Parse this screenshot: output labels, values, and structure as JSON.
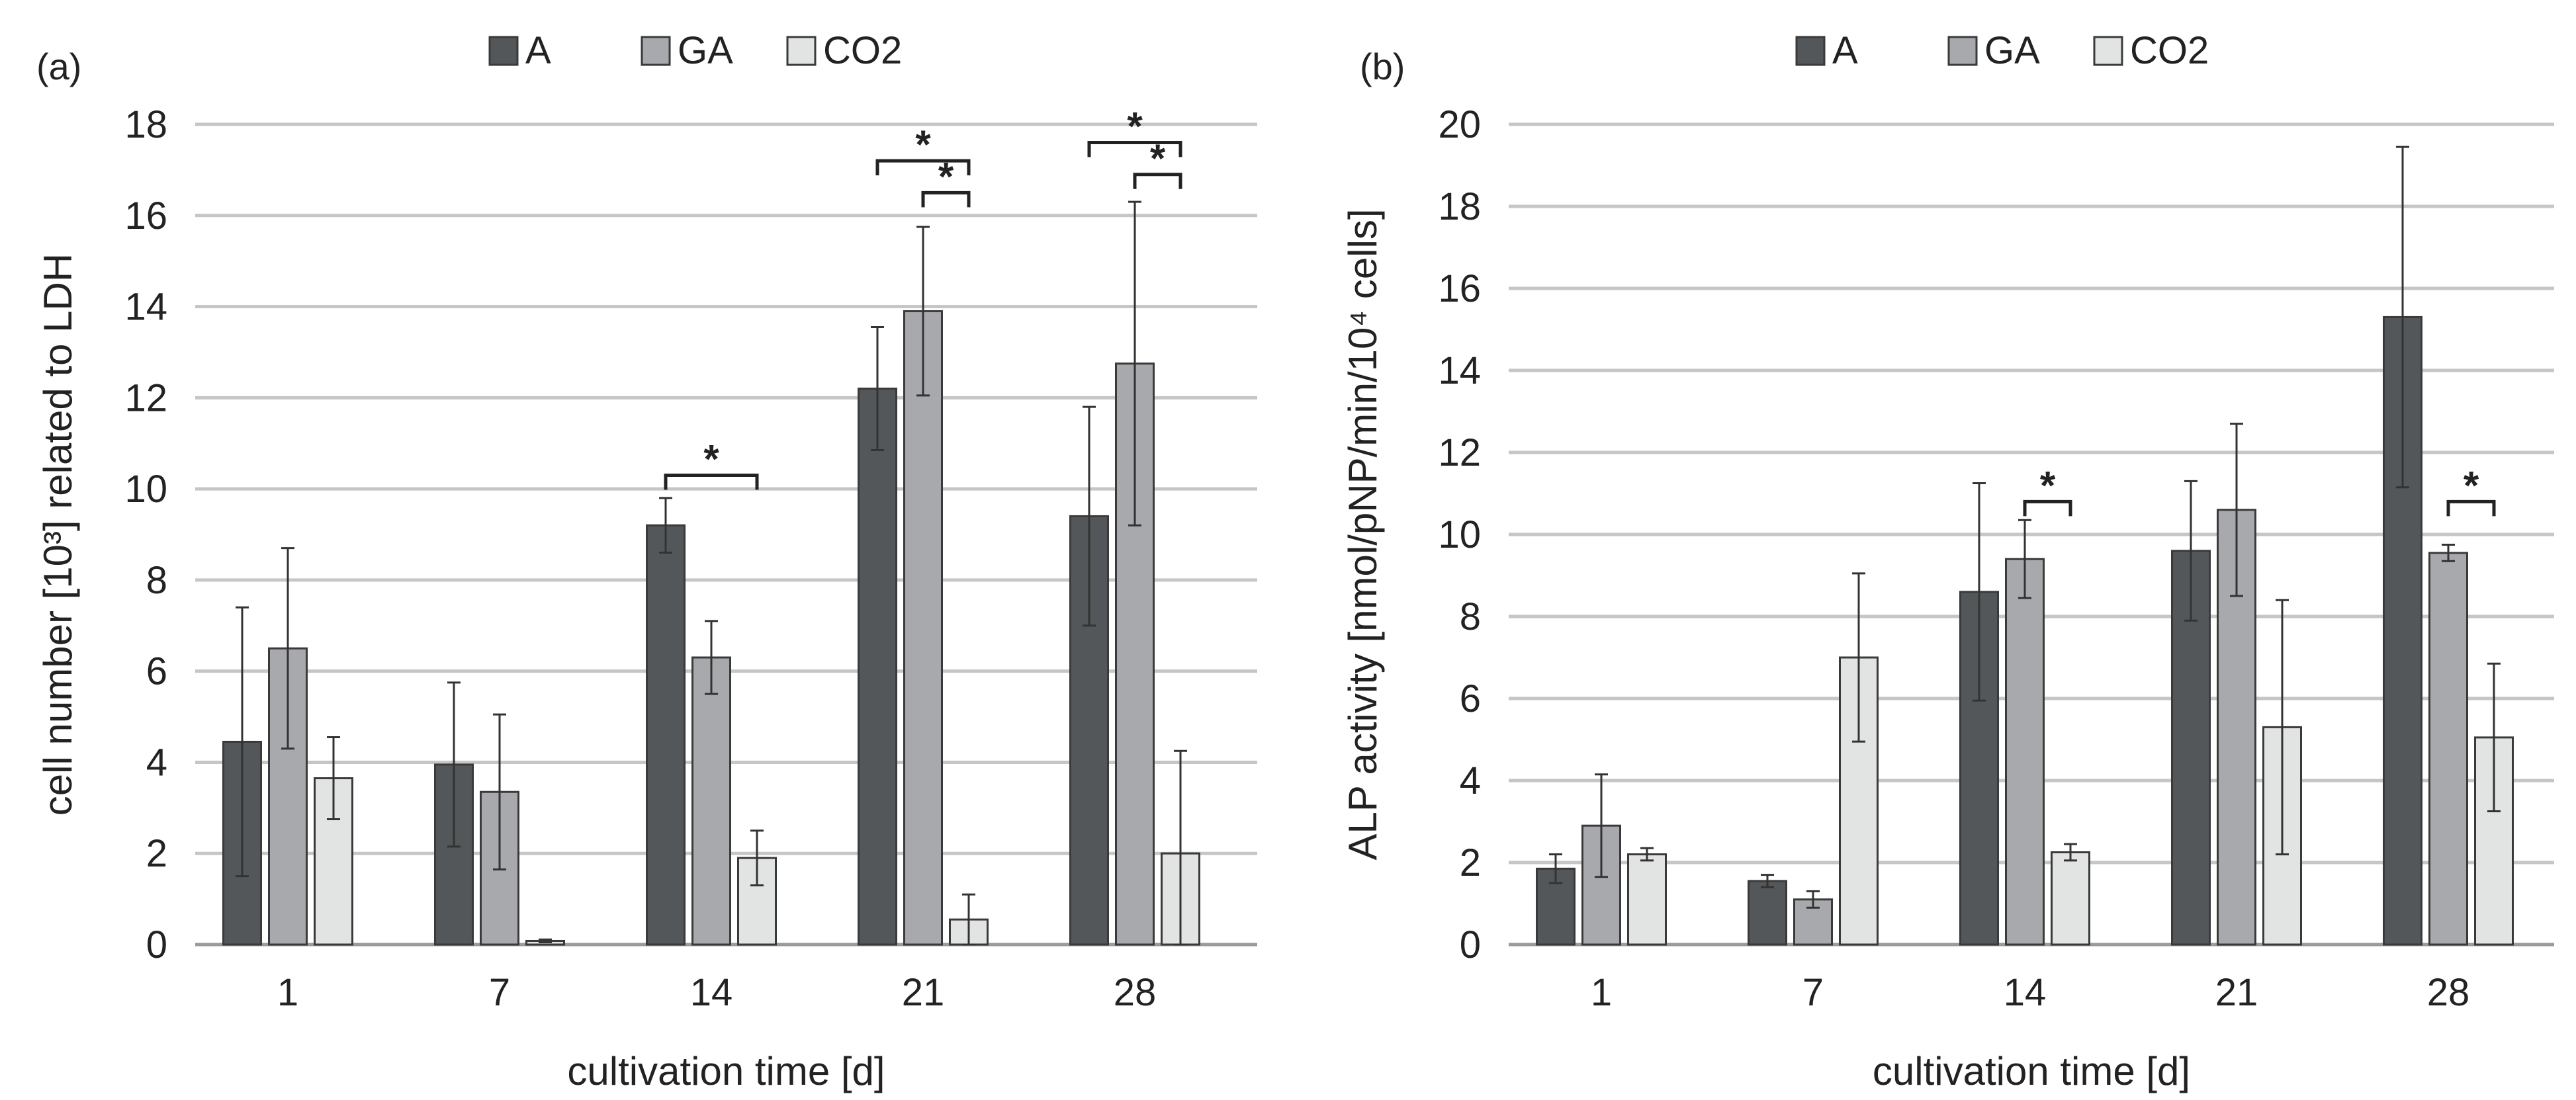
{
  "chart_data": [
    {
      "type": "bar",
      "panel_label": "(a)",
      "title": "",
      "xlabel": "cultivation time [d]",
      "ylabel": "cell number [10³] related to LDH",
      "ylim": [
        0,
        18
      ],
      "yticks": [
        0,
        2,
        4,
        6,
        8,
        10,
        12,
        14,
        16,
        18
      ],
      "grid": true,
      "legend_position": "top-center",
      "categories": [
        "1",
        "7",
        "14",
        "21",
        "28"
      ],
      "series": [
        {
          "name": "A",
          "color": "#545759",
          "values": [
            4.45,
            3.95,
            9.2,
            12.2,
            9.4
          ],
          "errors": [
            2.95,
            1.8,
            0.6,
            1.35,
            2.4
          ]
        },
        {
          "name": "GA",
          "color": "#a7a9ac",
          "values": [
            6.5,
            3.35,
            6.3,
            13.9,
            12.75
          ],
          "errors": [
            2.2,
            1.7,
            0.8,
            1.85,
            3.55
          ]
        },
        {
          "name": "CO2",
          "color": "#e2e3e3",
          "values": [
            3.65,
            0.08,
            1.9,
            0.55,
            2.0
          ],
          "errors": [
            0.9,
            0.03,
            0.6,
            0.55,
            2.25
          ]
        }
      ],
      "significance": [
        {
          "category": "14",
          "from": "A",
          "to": "CO2",
          "label": "*",
          "y": 10.3
        },
        {
          "category": "21",
          "from": "A",
          "to": "CO2",
          "label": "*",
          "y": 17.2
        },
        {
          "category": "21",
          "from": "GA",
          "to": "CO2",
          "label": "*",
          "y": 16.5
        },
        {
          "category": "28",
          "from": "A",
          "to": "CO2",
          "label": "*",
          "y": 17.6
        },
        {
          "category": "28",
          "from": "GA",
          "to": "CO2",
          "label": "*",
          "y": 16.9
        }
      ]
    },
    {
      "type": "bar",
      "panel_label": "(b)",
      "title": "",
      "xlabel": "cultivation time [d]",
      "ylabel": "ALP activity [nmol/pNP/min/10⁴ cells]",
      "ylim": [
        0,
        20
      ],
      "yticks": [
        0,
        2,
        4,
        6,
        8,
        10,
        12,
        14,
        16,
        18,
        20
      ],
      "grid": true,
      "legend_position": "top-center",
      "categories": [
        "1",
        "7",
        "14",
        "21",
        "28"
      ],
      "series": [
        {
          "name": "A",
          "color": "#545759",
          "values": [
            1.85,
            1.55,
            8.6,
            9.6,
            15.3
          ],
          "errors": [
            0.35,
            0.15,
            2.65,
            1.7,
            4.15
          ]
        },
        {
          "name": "GA",
          "color": "#a7a9ac",
          "values": [
            2.9,
            1.1,
            9.4,
            10.6,
            9.55
          ],
          "errors": [
            1.25,
            0.2,
            0.95,
            2.1,
            0.2
          ]
        },
        {
          "name": "CO2",
          "color": "#e2e3e3",
          "values": [
            2.2,
            7.0,
            2.25,
            5.3,
            5.05
          ],
          "errors": [
            0.15,
            2.05,
            0.2,
            3.1,
            1.8
          ]
        }
      ],
      "significance": [
        {
          "category": "14",
          "from": "GA",
          "to": "CO2",
          "label": "*",
          "y": 10.8
        },
        {
          "category": "28",
          "from": "GA",
          "to": "CO2",
          "label": "*",
          "y": 10.8
        }
      ]
    }
  ]
}
